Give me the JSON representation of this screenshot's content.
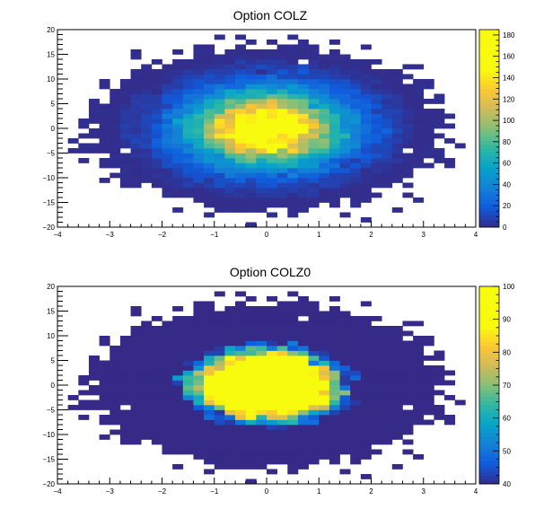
{
  "chart_data": [
    {
      "type": "heatmap",
      "title": "Option COLZ",
      "xlabel": "",
      "ylabel": "",
      "xlim": [
        -4,
        4
      ],
      "ylim": [
        -20,
        20
      ],
      "x_ticks": [
        "−4",
        "−3",
        "−2",
        "−1",
        "0",
        "1",
        "2",
        "3",
        "4"
      ],
      "y_ticks": [
        "−20",
        "−15",
        "−10",
        "−5",
        "0",
        "5",
        "10",
        "15",
        "20"
      ],
      "z_range": [
        0,
        185
      ],
      "z_ticks": [
        "0",
        "20",
        "40",
        "60",
        "80",
        "100",
        "120",
        "140",
        "160",
        "180"
      ],
      "distribution": {
        "shape": "bivariate gaussian",
        "x_center": 0,
        "y_center": 0,
        "x_sigma": 1,
        "y_sigma": 5,
        "bins_x": 40,
        "bins_y": 40,
        "peak_count": 180
      },
      "colz0": false
    },
    {
      "type": "heatmap",
      "title": "Option COLZ0",
      "xlabel": "",
      "ylabel": "",
      "xlim": [
        -4,
        4
      ],
      "ylim": [
        -20,
        20
      ],
      "x_ticks": [
        "−4",
        "−3",
        "−2",
        "−1",
        "0",
        "1",
        "2",
        "3",
        "4"
      ],
      "y_ticks": [
        "−20",
        "−15",
        "−10",
        "−5",
        "0",
        "5",
        "10",
        "15",
        "20"
      ],
      "z_range": [
        40,
        100
      ],
      "z_ticks": [
        "40",
        "50",
        "60",
        "70",
        "80",
        "90",
        "100"
      ],
      "distribution": {
        "shape": "bivariate gaussian",
        "x_center": 0,
        "y_center": 0,
        "x_sigma": 1,
        "y_sigma": 5,
        "bins_x": 40,
        "bins_y": 40,
        "peak_count": 180
      },
      "colz0": true
    }
  ]
}
